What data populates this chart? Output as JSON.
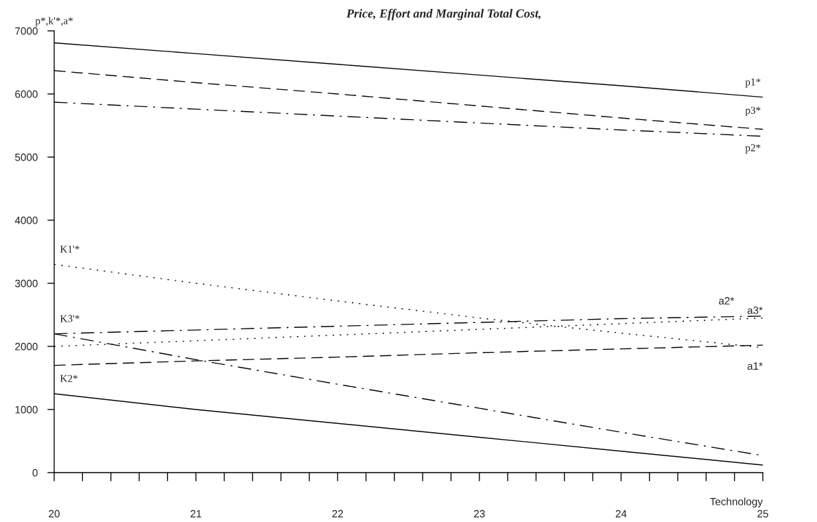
{
  "chart_data": {
    "type": "line",
    "title": "Price, Effort and Marginal Total Cost,",
    "xlabel": "Technology",
    "ylabel": "p*,k'*,a*",
    "x": [
      20,
      21,
      22,
      23,
      24,
      25
    ],
    "series": [
      {
        "name": "p1*",
        "color": "#000000",
        "line_style": "solid",
        "values": [
          6810,
          6640,
          6470,
          6300,
          6130,
          5950
        ]
      },
      {
        "name": "p3*",
        "color": "#000000",
        "line_style": "dashed",
        "values": [
          6370,
          6180,
          6000,
          5810,
          5620,
          5440
        ]
      },
      {
        "name": "p2*",
        "color": "#000000",
        "line_style": "dashdot",
        "values": [
          5870,
          5760,
          5650,
          5540,
          5430,
          5330
        ]
      },
      {
        "name": "K1'*",
        "color": "#000000",
        "line_style": "dotted",
        "values": [
          3300,
          3000,
          2720,
          2450,
          2210,
          1980
        ]
      },
      {
        "name": "K3'*",
        "color": "#000000",
        "line_style": "dashdot",
        "values": [
          2200,
          1790,
          1400,
          1020,
          640,
          270
        ]
      },
      {
        "name": "K2*",
        "color": "#000000",
        "line_style": "solid",
        "values": [
          1250,
          1000,
          780,
          560,
          340,
          120
        ]
      },
      {
        "name": "a2*",
        "color": "#000000",
        "line_style": "dashdot",
        "values": [
          2200,
          2260,
          2320,
          2380,
          2440,
          2480
        ]
      },
      {
        "name": "a3*",
        "color": "#000000",
        "line_style": "dotted",
        "values": [
          2000,
          2090,
          2180,
          2270,
          2360,
          2450
        ]
      },
      {
        "name": "a1*",
        "color": "#000000",
        "line_style": "dashed",
        "values": [
          1700,
          1770,
          1830,
          1900,
          1960,
          2020
        ]
      }
    ],
    "xlim": [
      20,
      25
    ],
    "ylim": [
      0,
      7000
    ],
    "xticks": [
      20,
      {
        "value": 20.2,
        "label": null
      },
      {
        "value": 20.4,
        "label": null
      },
      {
        "value": 20.6,
        "label": null
      },
      {
        "value": 20.8,
        "label": null
      },
      21,
      {
        "value": 21.2,
        "label": null
      },
      {
        "value": 21.4,
        "label": null
      },
      {
        "value": 21.6,
        "label": null
      },
      {
        "value": 21.8,
        "label": null
      },
      22,
      {
        "value": 22.2,
        "label": null
      },
      {
        "value": 22.4,
        "label": null
      },
      {
        "value": 22.6,
        "label": null
      },
      {
        "value": 22.8,
        "label": null
      },
      23,
      {
        "value": 23.2,
        "label": null
      },
      {
        "value": 23.4,
        "label": null
      },
      {
        "value": 23.6,
        "label": null
      },
      {
        "value": 23.8,
        "label": null
      },
      24,
      {
        "value": 24.2,
        "label": null
      },
      {
        "value": 24.4,
        "label": null
      },
      {
        "value": 24.6,
        "label": null
      },
      {
        "value": 24.8,
        "label": null
      },
      25
    ],
    "yticks": [
      0,
      1000,
      2000,
      3000,
      4000,
      5000,
      6000,
      7000
    ],
    "grid": false,
    "legend": false,
    "marker": "none"
  }
}
